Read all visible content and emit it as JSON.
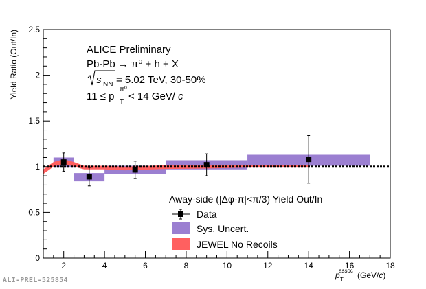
{
  "chart_data": {
    "type": "scatter",
    "title": "",
    "xlabel": "p_T^assoc (GeV/c)",
    "ylabel": "Yield Ratio (Out/In)",
    "xlim": [
      1,
      18
    ],
    "ylim": [
      0,
      2.5
    ],
    "x_ticks": [
      2,
      4,
      6,
      8,
      10,
      12,
      14,
      16,
      18
    ],
    "y_ticks": [
      0,
      0.5,
      1,
      1.5,
      2,
      2.5
    ],
    "y_tick_labels": [
      "0",
      "0.5",
      "1",
      "1.5",
      "2",
      "2.5"
    ],
    "reference_line": 1,
    "annotations": {
      "prelim": "ALICE Preliminary",
      "system": "Pb-Pb → π⁰ + h + X",
      "energy": "= 5.02 TeV, 30-50%",
      "energy_symbol_base": "s",
      "energy_symbol_sub": "NN",
      "trigger_lower": "11 ≤ p",
      "trigger_sub": "T",
      "trigger_sup": "π⁰",
      "trigger_upper": "< 14 GeV/",
      "trigger_unit": "c"
    },
    "legend_header": "Away-side (|Δφ-π|<π/3) Yield Out/In",
    "legend_placement": "bottom-center",
    "series": [
      {
        "name": "Data",
        "style": "markers",
        "points": [
          {
            "x": 2.0,
            "y": 1.05,
            "err": 0.1
          },
          {
            "x": 3.25,
            "y": 0.89,
            "err": 0.1
          },
          {
            "x": 5.5,
            "y": 0.965,
            "err": 0.095
          },
          {
            "x": 9.0,
            "y": 1.02,
            "err": 0.12
          },
          {
            "x": 14.0,
            "y": 1.08,
            "err": 0.26
          }
        ]
      },
      {
        "name": "Sys. Uncert.",
        "style": "boxes",
        "boxes": [
          {
            "x0": 1.5,
            "x1": 2.5,
            "y0": 0.99,
            "y1": 1.1
          },
          {
            "x0": 2.5,
            "x1": 4.0,
            "y0": 0.84,
            "y1": 0.93
          },
          {
            "x0": 4.0,
            "x1": 7.0,
            "y0": 0.92,
            "y1": 1.01
          },
          {
            "x0": 7.0,
            "x1": 11.0,
            "y0": 0.97,
            "y1": 1.07
          },
          {
            "x0": 11.0,
            "x1": 17.0,
            "y0": 1.01,
            "y1": 1.13
          }
        ]
      },
      {
        "name": "JEWEL No Recoils",
        "style": "band",
        "x": [
          1.0,
          1.5,
          2.0,
          2.5,
          3.0,
          4.0,
          5.0,
          7.0,
          9.0,
          11.0,
          13.0,
          14.0
        ],
        "y_low": [
          0.92,
          1.0,
          1.03,
          1.0,
          0.97,
          0.97,
          0.96,
          0.975,
          0.98,
          0.99,
          0.99,
          0.99
        ],
        "y_high": [
          0.97,
          1.05,
          1.08,
          1.05,
          1.01,
          1.01,
          1.0,
          1.015,
          1.02,
          1.02,
          1.02,
          1.02
        ]
      }
    ],
    "colors": {
      "data": "#000000",
      "sys": "#9b7fd1",
      "jewel": "#ff6060",
      "reference": "#000000"
    }
  },
  "watermark": "ALI-PREL-525854"
}
